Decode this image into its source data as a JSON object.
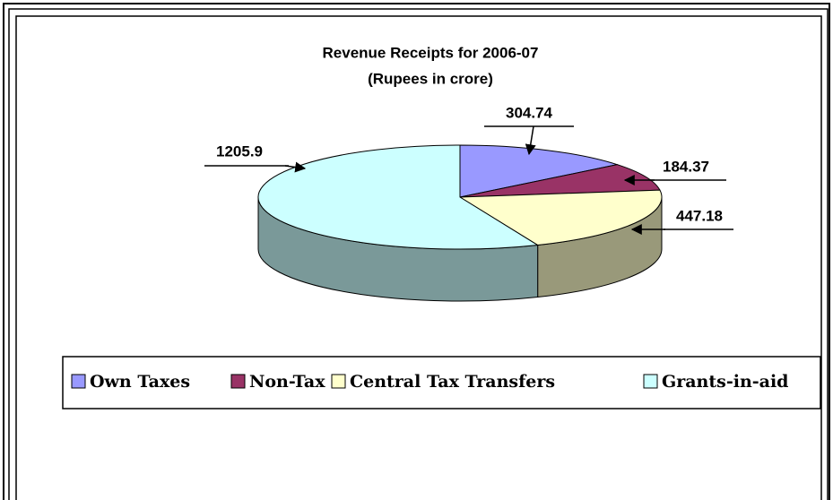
{
  "chart_data": {
    "type": "pie3d",
    "title": "Revenue Receipts for 2006-07",
    "subtitle": "(Rupees  in  crore)",
    "categories": [
      "Own Taxes",
      "Non-Tax",
      "Central Tax Transfers",
      "Grants-in-aid"
    ],
    "values": [
      304.74,
      184.37,
      447.18,
      1205.9
    ],
    "colors": [
      "#9999ff",
      "#993366",
      "#ffffcc",
      "#ccffff"
    ],
    "legend": "bottom"
  }
}
